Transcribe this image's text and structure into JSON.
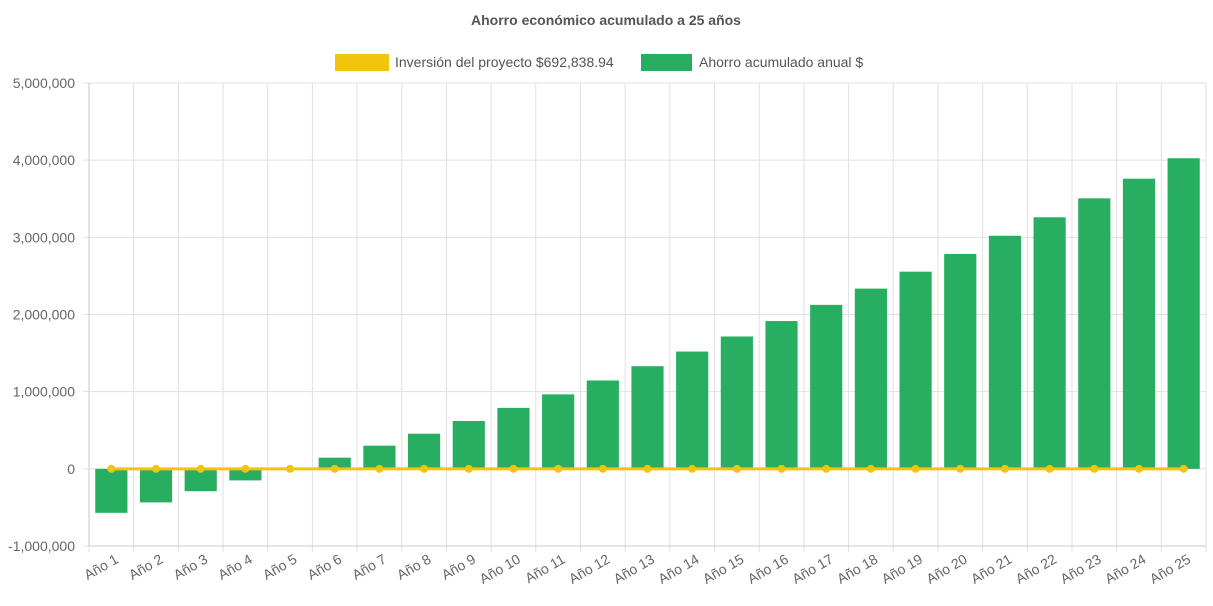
{
  "chart_data": {
    "type": "bar",
    "title": "Ahorro económico acumulado a 25 años",
    "categories": [
      "Año 1",
      "Año 2",
      "Año 3",
      "Año 4",
      "Año 5",
      "Año 6",
      "Año 7",
      "Año 8",
      "Año 9",
      "Año 10",
      "Año 11",
      "Año 12",
      "Año 13",
      "Año 14",
      "Año 15",
      "Año 16",
      "Año 17",
      "Año 18",
      "Año 19",
      "Año 20",
      "Año 21",
      "Año 22",
      "Año 23",
      "Año 24",
      "Año 25"
    ],
    "series": [
      {
        "name": "Inversión del proyecto $692,838.94",
        "type": "line",
        "color": "#f1c40f",
        "values": [
          0,
          0,
          0,
          0,
          0,
          0,
          0,
          0,
          0,
          0,
          0,
          0,
          0,
          0,
          0,
          0,
          0,
          0,
          0,
          0,
          0,
          0,
          0,
          0,
          0
        ]
      },
      {
        "name": "Ahorro acumulado anual $",
        "type": "bar",
        "color": "#27ae60",
        "values": [
          -570000,
          -435000,
          -290000,
          -150000,
          -5000,
          145000,
          300000,
          455000,
          620000,
          790000,
          965000,
          1145000,
          1330000,
          1520000,
          1715000,
          1915000,
          2125000,
          2335000,
          2555000,
          2785000,
          3020000,
          3260000,
          3505000,
          3760000,
          4025000
        ]
      }
    ],
    "yticks": [
      "5,000,000",
      "4,000,000",
      "3,000,000",
      "2,000,000",
      "1,000,000",
      "0",
      "-1,000,000"
    ],
    "ylim": [
      -1000000,
      5000000
    ],
    "grid": true,
    "legend_position": "top"
  }
}
